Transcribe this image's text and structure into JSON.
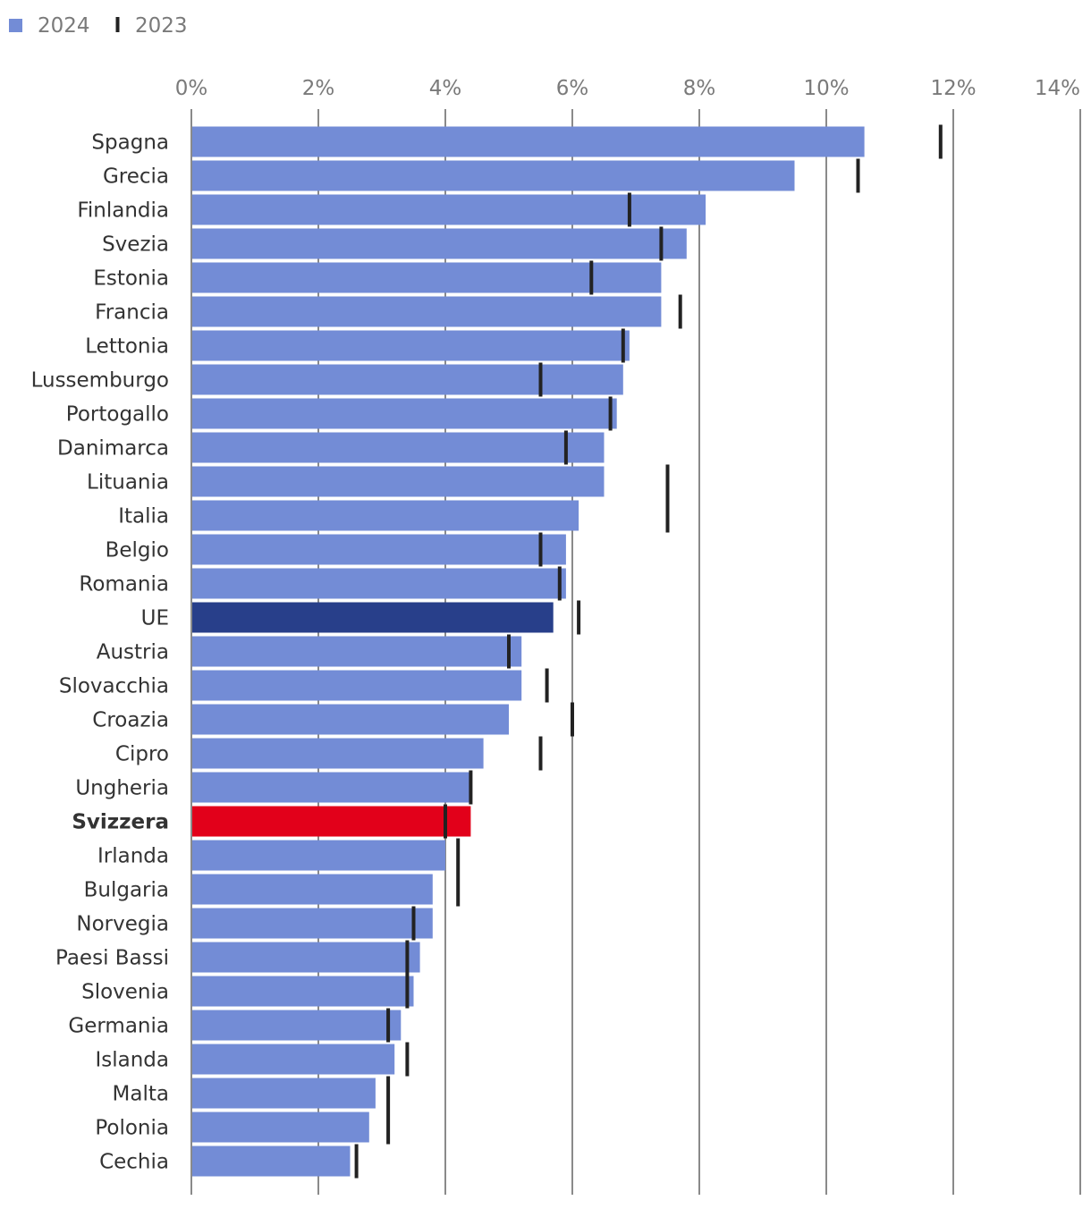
{
  "chart_data": {
    "type": "bar",
    "orientation": "horizontal",
    "legend": {
      "placement": "top-left",
      "entries": [
        {
          "name": "2024",
          "marker": "square",
          "color": "#738cd6"
        },
        {
          "name": "2023",
          "marker": "tick",
          "color": "#222222"
        }
      ]
    },
    "xlim": [
      0,
      14
    ],
    "xticks": [
      0,
      2,
      4,
      6,
      8,
      10,
      12,
      14
    ],
    "tick_labels": [
      "0%",
      "2%",
      "4%",
      "6%",
      "8%",
      "10%",
      "12%",
      "14%"
    ],
    "grid": true,
    "colors": {
      "default": "#738cd6",
      "eu": "#283f8a",
      "switzerland": "#e2001a",
      "marker": "#222222",
      "grid": "#8a8a8a",
      "tick_text": "#7a7a7a",
      "label_text": "#333333"
    },
    "categories": [
      "Spagna",
      "Grecia",
      "Finlandia",
      "Svezia",
      "Estonia",
      "Francia",
      "Lettonia",
      "Lussemburgo",
      "Portogallo",
      "Danimarca",
      "Lituania",
      "Italia",
      "Belgio",
      "Romania",
      "UE",
      "Austria",
      "Slovacchia",
      "Croazia",
      "Cipro",
      "Ungheria",
      "Svizzera",
      "Irlanda",
      "Bulgaria",
      "Norvegia",
      "Paesi Bassi",
      "Slovenia",
      "Germania",
      "Islanda",
      "Malta",
      "Polonia",
      "Cechia"
    ],
    "series": [
      {
        "name": "2024",
        "values": [
          10.6,
          9.5,
          8.1,
          7.8,
          7.4,
          7.4,
          6.9,
          6.8,
          6.7,
          6.5,
          6.5,
          6.1,
          5.9,
          5.9,
          5.7,
          5.2,
          5.2,
          5.0,
          4.6,
          4.4,
          4.4,
          4.0,
          3.8,
          3.8,
          3.6,
          3.5,
          3.3,
          3.2,
          2.9,
          2.8,
          2.5
        ]
      },
      {
        "name": "2023",
        "values": [
          11.8,
          10.5,
          6.9,
          7.4,
          6.3,
          7.7,
          6.8,
          5.5,
          6.6,
          5.9,
          7.5,
          7.5,
          5.5,
          5.8,
          6.1,
          5.0,
          5.6,
          6.0,
          5.5,
          4.4,
          4.0,
          4.2,
          4.2,
          3.5,
          3.4,
          3.4,
          3.1,
          3.4,
          3.1,
          3.1,
          2.6
        ]
      }
    ],
    "highlight": {
      "UE": "eu",
      "Svizzera": "switzerland"
    },
    "bold_categories": [
      "Svizzera"
    ]
  }
}
